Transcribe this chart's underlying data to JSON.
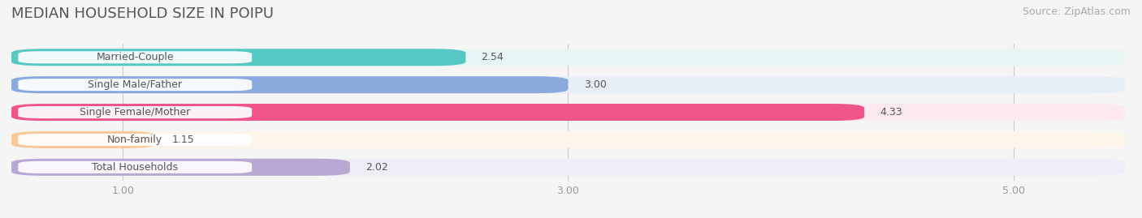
{
  "title": "MEDIAN HOUSEHOLD SIZE IN POIPU",
  "source": "Source: ZipAtlas.com",
  "categories": [
    "Married-Couple",
    "Single Male/Father",
    "Single Female/Mother",
    "Non-family",
    "Total Households"
  ],
  "values": [
    2.54,
    3.0,
    4.33,
    1.15,
    2.02
  ],
  "bar_colors": [
    "#55c8c4",
    "#88aadd",
    "#f05588",
    "#f8c898",
    "#b8a8d4"
  ],
  "bar_bg_colors": [
    "#e8f5f5",
    "#e8eef8",
    "#fce8f0",
    "#fdf5ea",
    "#f0ecf8"
  ],
  "label_bg_color": "#ffffff",
  "xlim_min": 0.5,
  "xlim_max": 5.5,
  "xticks": [
    1.0,
    3.0,
    5.0
  ],
  "xticklabels": [
    "1.00",
    "3.00",
    "5.00"
  ],
  "title_fontsize": 13,
  "source_fontsize": 9,
  "label_fontsize": 9,
  "value_fontsize": 9,
  "bar_height": 0.62,
  "background_color": "#f5f5f5",
  "grid_color": "#cccccc",
  "text_color": "#555555",
  "tick_color": "#999999"
}
